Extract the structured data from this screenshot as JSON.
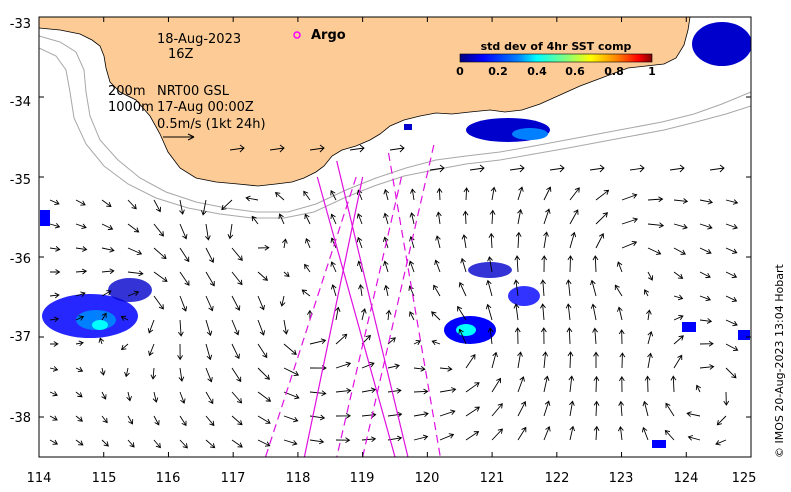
{
  "map": {
    "lon_ticks": [
      "114",
      "115",
      "116",
      "117",
      "118",
      "119",
      "120",
      "121",
      "122",
      "123",
      "124",
      "125"
    ],
    "lat_ticks": [
      "-33",
      "-34",
      "-35",
      "-36",
      "-37",
      "-38"
    ],
    "lon_range": [
      114,
      125
    ],
    "lat_range": [
      -33,
      -38.5
    ],
    "date": "18-Aug-2023",
    "hour": "16Z",
    "legend_argo": "Argo",
    "contour_200": "200m",
    "contour_1000": "1000m",
    "product": "NRT00 GSL",
    "vector_time": "17-Aug 00:00Z",
    "scale_label": "0.5m/s (1kt 24h)",
    "credit": "© IMOS 20-Aug-2023 13:04 Hobart",
    "colors": {
      "land": "#fccb96",
      "track": "#e010e0",
      "argo": "#ff00ff",
      "contour": "#a8a8a8"
    }
  },
  "colorbar": {
    "title": "std dev of 4hr SST comp",
    "ticks": [
      "0",
      "0.2",
      "0.4",
      "0.6",
      "0.8",
      "1"
    ],
    "range": [
      0,
      1
    ],
    "colors": [
      "#00007f",
      "#0000ff",
      "#0080ff",
      "#00ffff",
      "#80ff80",
      "#ffff00",
      "#ff8000",
      "#ff0000",
      "#7f0000"
    ]
  },
  "tracks": [
    {
      "style": "solid",
      "from": [
        118.3,
        -35.0
      ],
      "to": [
        119.5,
        -38.5
      ]
    },
    {
      "style": "solid",
      "from": [
        119.0,
        -35.0
      ],
      "to": [
        118.1,
        -38.5
      ]
    },
    {
      "style": "solid",
      "from": [
        118.6,
        -34.8
      ],
      "to": [
        119.7,
        -38.5
      ]
    },
    {
      "style": "dashed",
      "from": [
        118.9,
        -35.0
      ],
      "to": [
        117.5,
        -38.5
      ]
    },
    {
      "style": "dashed",
      "from": [
        119.6,
        -35.0
      ],
      "to": [
        118.6,
        -38.5
      ]
    },
    {
      "style": "dashed",
      "from": [
        119.4,
        -34.7
      ],
      "to": [
        120.2,
        -38.5
      ]
    },
    {
      "style": "dashed",
      "from": [
        120.1,
        -34.6
      ],
      "to": [
        119.0,
        -38.5
      ]
    }
  ]
}
